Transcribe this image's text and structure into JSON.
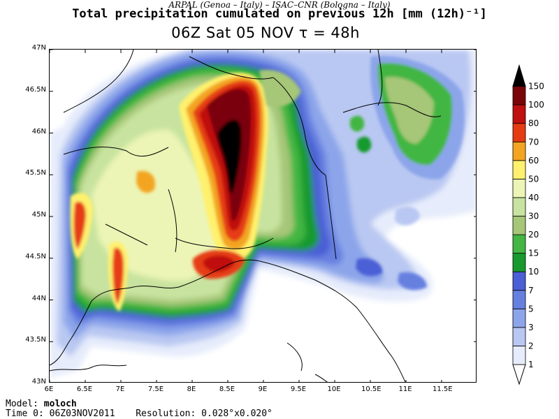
{
  "header": {
    "credit": "ARPAL (Genoa – Italy)  –  ISAC–CNR (Bologna – Italy)",
    "title": "Total precipitation cumulated on previous 12h [mm (12h)⁻¹]",
    "subtitle": "06Z Sat 05 NOV  τ = 48h"
  },
  "map": {
    "lon_ticks": [
      "6E",
      "6.5E",
      "7E",
      "7.5E",
      "8E",
      "8.5E",
      "9E",
      "9.5E",
      "10E",
      "10.5E",
      "11E",
      "11.5E"
    ],
    "lat_ticks": [
      "47N",
      "46.5N",
      "46N",
      "45.5N",
      "45N",
      "44.5N",
      "44N",
      "43.5N",
      "43N"
    ],
    "lon_range": [
      6,
      12
    ],
    "lat_range": [
      43,
      47
    ]
  },
  "colorbar": {
    "levels": [
      "1",
      "2",
      "3",
      "5",
      "7",
      "10",
      "15",
      "20",
      "30",
      "40",
      "50",
      "60",
      "70",
      "80",
      "100",
      "150"
    ],
    "colors": [
      "#e6ecfb",
      "#b9c8f2",
      "#8ca5ea",
      "#6680e0",
      "#4b5fd6",
      "#189a2e",
      "#43b643",
      "#a6c678",
      "#c7e39f",
      "#ecf5b5",
      "#fff16d",
      "#f3a521",
      "#e63c12",
      "#c01010",
      "#7a0508",
      "#000000"
    ]
  },
  "footer": {
    "model_label": "Model:",
    "model_value": "moloch",
    "time_label": "Time 0:",
    "time_value": "06Z03NOV2011",
    "res_label": "Resolution:",
    "res_value": "0.028°x0.020°"
  }
}
